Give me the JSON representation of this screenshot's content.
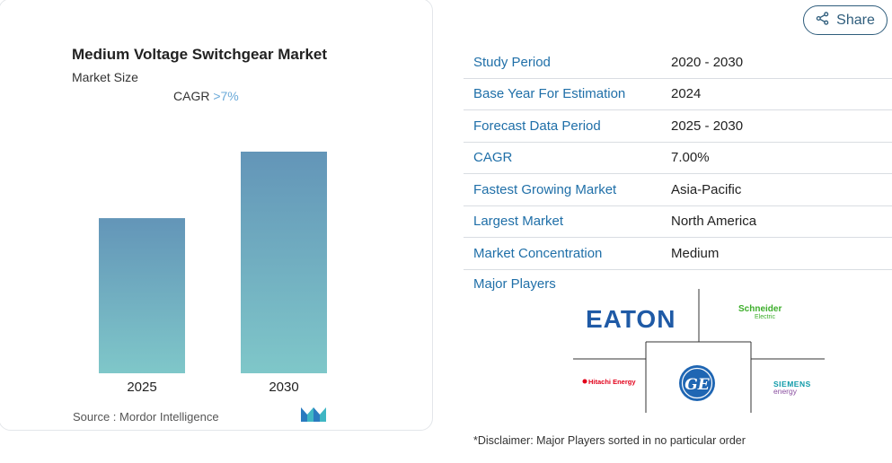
{
  "chart": {
    "title": "Medium Voltage Switchgear Market",
    "subtitle": "Market Size",
    "cagr_label": "CAGR",
    "cagr_value": ">7%",
    "source_label": "Source :",
    "source_value": "Mordor Intelligence"
  },
  "chart_data": {
    "type": "bar",
    "title": "Medium Voltage Switchgear Market",
    "categories": [
      "2025",
      "2030"
    ],
    "values": [
      0.7,
      1.0
    ],
    "value_note": "relative bar heights; no y-axis values printed",
    "ylim": [
      0,
      1.0
    ],
    "grid": false,
    "colors": {
      "top": "#6395b8",
      "bottom": "#7fc7c9"
    }
  },
  "share": {
    "label": "Share",
    "icon": "share-icon"
  },
  "facts": [
    {
      "key": "Study Period",
      "value": "2020 - 2030"
    },
    {
      "key": "Base Year For Estimation",
      "value": "2024"
    },
    {
      "key": "Forecast Data Period",
      "value": "2025 - 2030"
    },
    {
      "key": "CAGR",
      "value": "7.00%"
    },
    {
      "key": "Fastest Growing Market",
      "value": "Asia-Pacific"
    },
    {
      "key": "Largest Market",
      "value": "North America"
    },
    {
      "key": "Market Concentration",
      "value": "Medium"
    }
  ],
  "major_players": {
    "label": "Major Players",
    "logos": [
      "EATON",
      "Schneider Electric",
      "Hitachi Energy",
      "GE",
      "SIEMENS energy"
    ]
  },
  "disclaimer": "*Disclaimer: Major Players sorted in no particular order"
}
